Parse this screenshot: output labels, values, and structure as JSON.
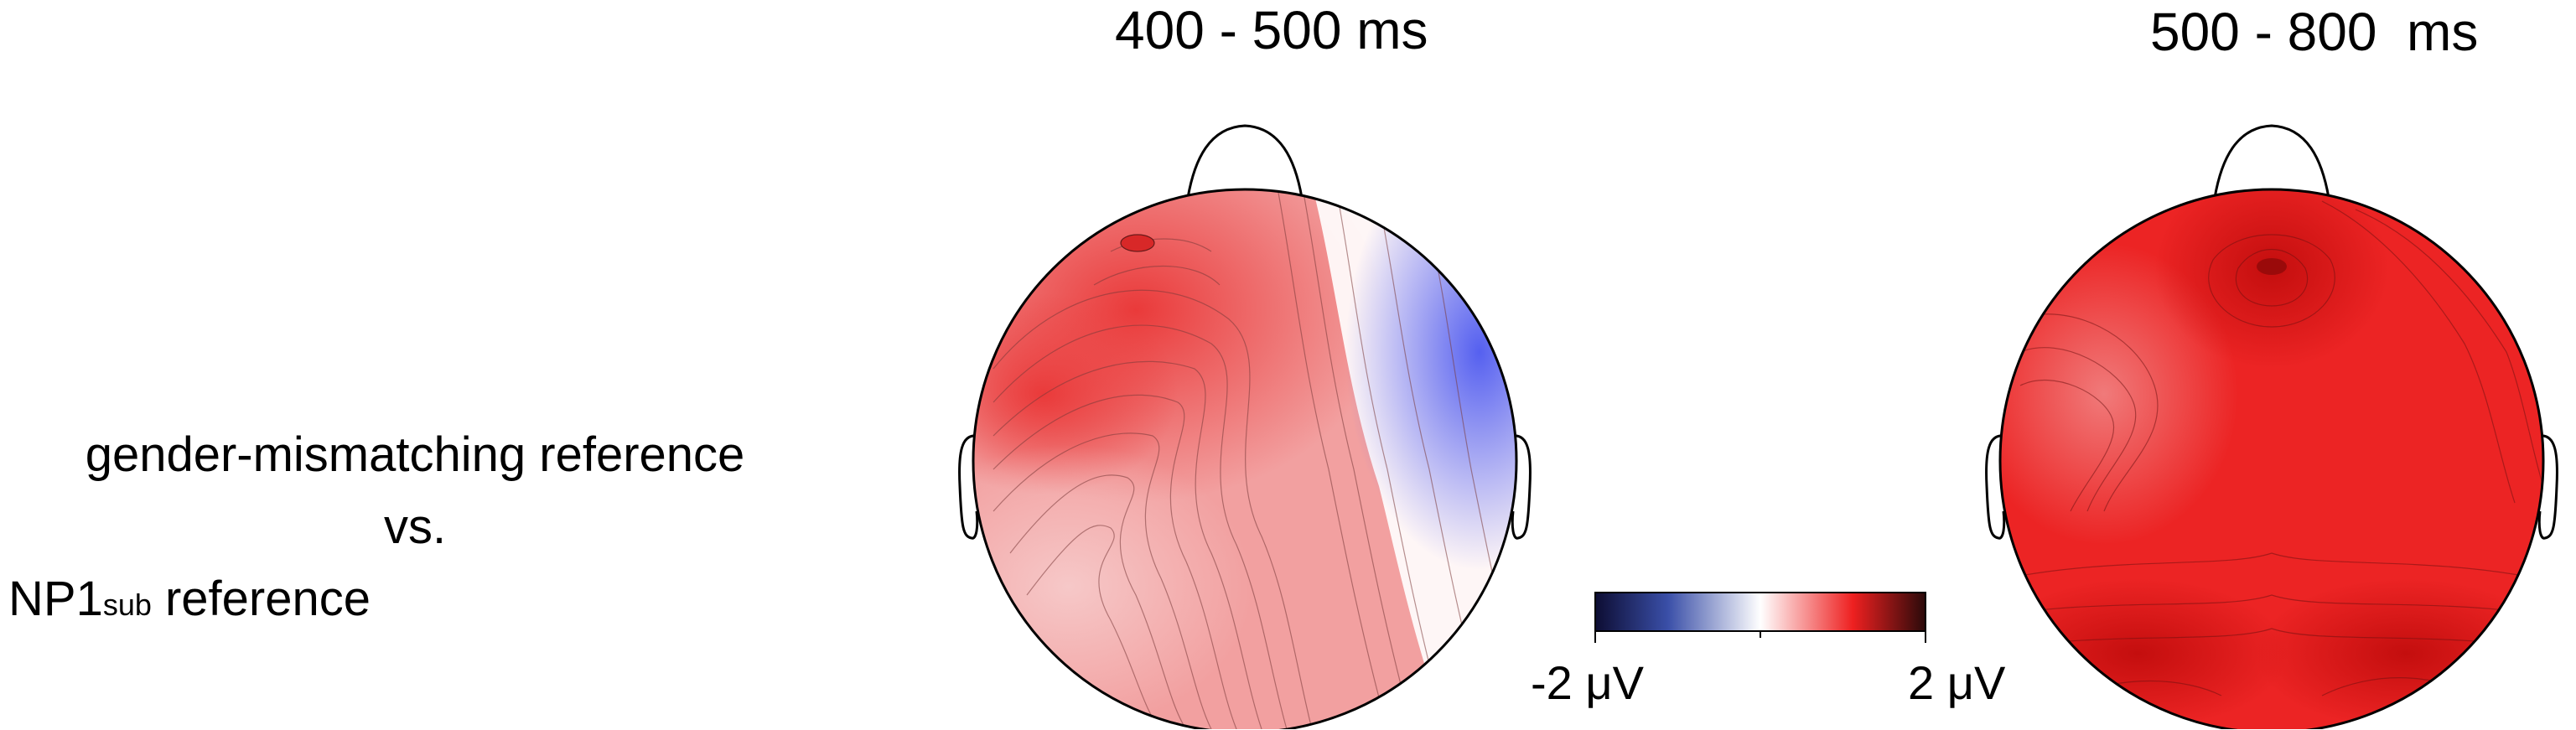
{
  "row_label": {
    "line1": "gender-mismatching reference",
    "line2": "vs.",
    "line3_main": "NP1",
    "line3_sub": "sub",
    "line3_rest": " reference"
  },
  "maps": [
    {
      "title": "400 - 500 ms"
    },
    {
      "title": "500 - 800  ms"
    }
  ],
  "colorbar": {
    "min_label": "-2 μV",
    "max_label": "2 μV",
    "min": -2,
    "max": 2,
    "unit": "μV",
    "colors": [
      "#0d0d33",
      "#3a4fa8",
      "#ffffff",
      "#ee2020",
      "#2a0a0a"
    ]
  }
}
